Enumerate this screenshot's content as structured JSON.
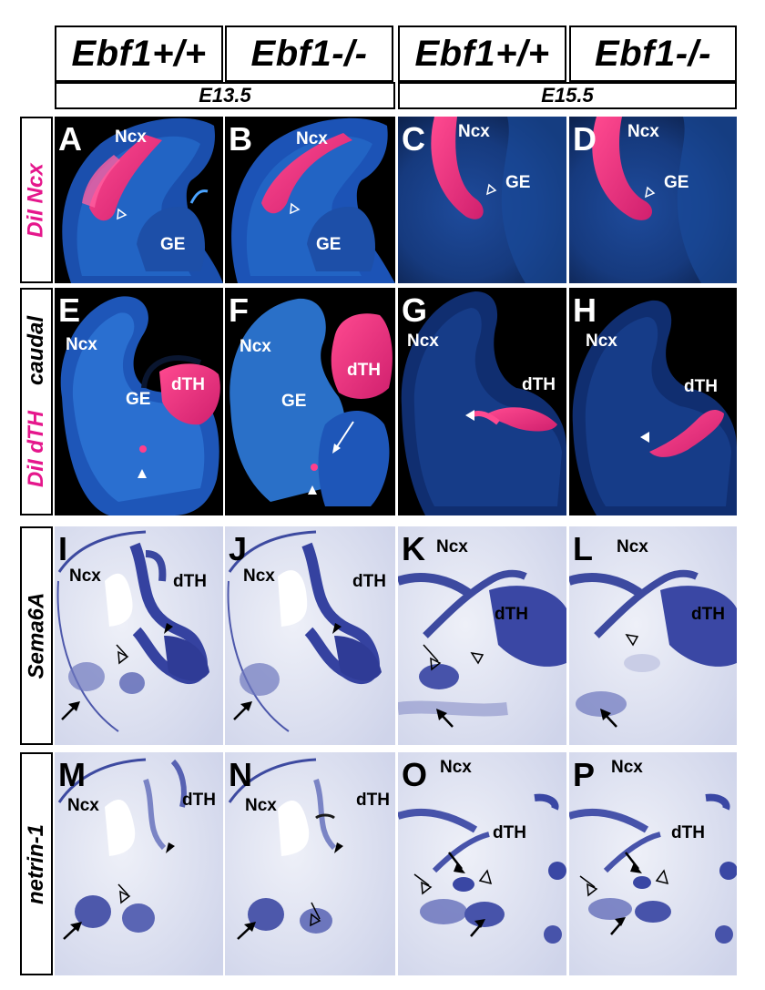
{
  "headers": {
    "genotypes": [
      "Ebf1+/+",
      "Ebf1-/-",
      "Ebf1+/+",
      "Ebf1-/-"
    ],
    "stages": [
      "E13.5",
      "E15.5"
    ]
  },
  "row_labels": {
    "row1": "DiI Ncx",
    "row2_top": "caudal",
    "row2_bottom": "DiI dTH",
    "row3": "Sema6A",
    "row4": "netrin-1"
  },
  "panels": {
    "A": {
      "letter": "A",
      "regions": [
        "Ncx",
        "GE"
      ]
    },
    "B": {
      "letter": "B",
      "regions": [
        "Ncx",
        "GE"
      ]
    },
    "C": {
      "letter": "C",
      "regions": [
        "Ncx",
        "GE"
      ]
    },
    "D": {
      "letter": "D",
      "regions": [
        "Ncx",
        "GE"
      ]
    },
    "E": {
      "letter": "E",
      "regions": [
        "Ncx",
        "GE",
        "dTH"
      ]
    },
    "F": {
      "letter": "F",
      "regions": [
        "Ncx",
        "GE",
        "dTH"
      ]
    },
    "G": {
      "letter": "G",
      "regions": [
        "Ncx",
        "dTH"
      ]
    },
    "H": {
      "letter": "H",
      "regions": [
        "Ncx",
        "dTH"
      ]
    },
    "I": {
      "letter": "I",
      "regions": [
        "Ncx",
        "dTH"
      ]
    },
    "J": {
      "letter": "J",
      "regions": [
        "Ncx",
        "dTH"
      ]
    },
    "K": {
      "letter": "K",
      "regions": [
        "Ncx",
        "dTH"
      ]
    },
    "L": {
      "letter": "L",
      "regions": [
        "Ncx",
        "dTH"
      ]
    },
    "M": {
      "letter": "M",
      "regions": [
        "Ncx",
        "dTH"
      ]
    },
    "N": {
      "letter": "N",
      "regions": [
        "Ncx",
        "dTH"
      ]
    },
    "O": {
      "letter": "O",
      "regions": [
        "Ncx",
        "dTH"
      ]
    },
    "P": {
      "letter": "P",
      "regions": [
        "Ncx",
        "dTH"
      ]
    }
  },
  "colors": {
    "dii_magenta": "#ff2f86",
    "dapi_blue": "#2e6fc8",
    "ish_stain": "#4650a8",
    "ish_background": "#e6e9f4"
  }
}
